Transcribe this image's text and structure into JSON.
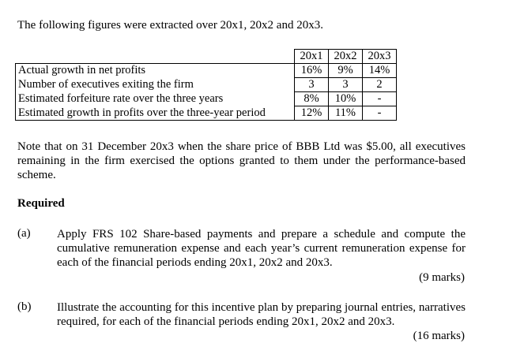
{
  "intro": "The following figures were extracted over 20x1, 20x2 and 20x3.",
  "table": {
    "headers": [
      "20x1",
      "20x2",
      "20x3"
    ],
    "rows": [
      {
        "label": "Actual growth in net profits",
        "values": [
          "16%",
          "9%",
          "14%"
        ]
      },
      {
        "label": "Number of executives exiting the firm",
        "values": [
          "3",
          "3",
          "2"
        ]
      },
      {
        "label": "Estimated forfeiture rate over the three years",
        "values": [
          "8%",
          "10%",
          "-"
        ]
      },
      {
        "label": "Estimated growth in profits over the three-year period",
        "values": [
          "12%",
          "11%",
          "-"
        ]
      }
    ]
  },
  "note": "Note that on 31 December 20x3 when the share price of BBB Ltd was $5.00, all executives remaining in the firm exercised the options granted to them under the performance-based scheme.",
  "required": "Required",
  "questions": [
    {
      "label": "(a)",
      "text": "Apply FRS 102 Share-based payments and prepare a schedule and compute the cumulative remuneration expense and each year’s current remuneration expense for each of the financial periods ending 20x1, 20x2 and 20x3.",
      "marks": "(9 marks)"
    },
    {
      "label": "(b)",
      "text": "Illustrate the accounting for this incentive plan by preparing journal entries, narratives required, for each of the financial periods ending 20x1, 20x2 and 20x3.",
      "marks": "(16 marks)"
    }
  ]
}
